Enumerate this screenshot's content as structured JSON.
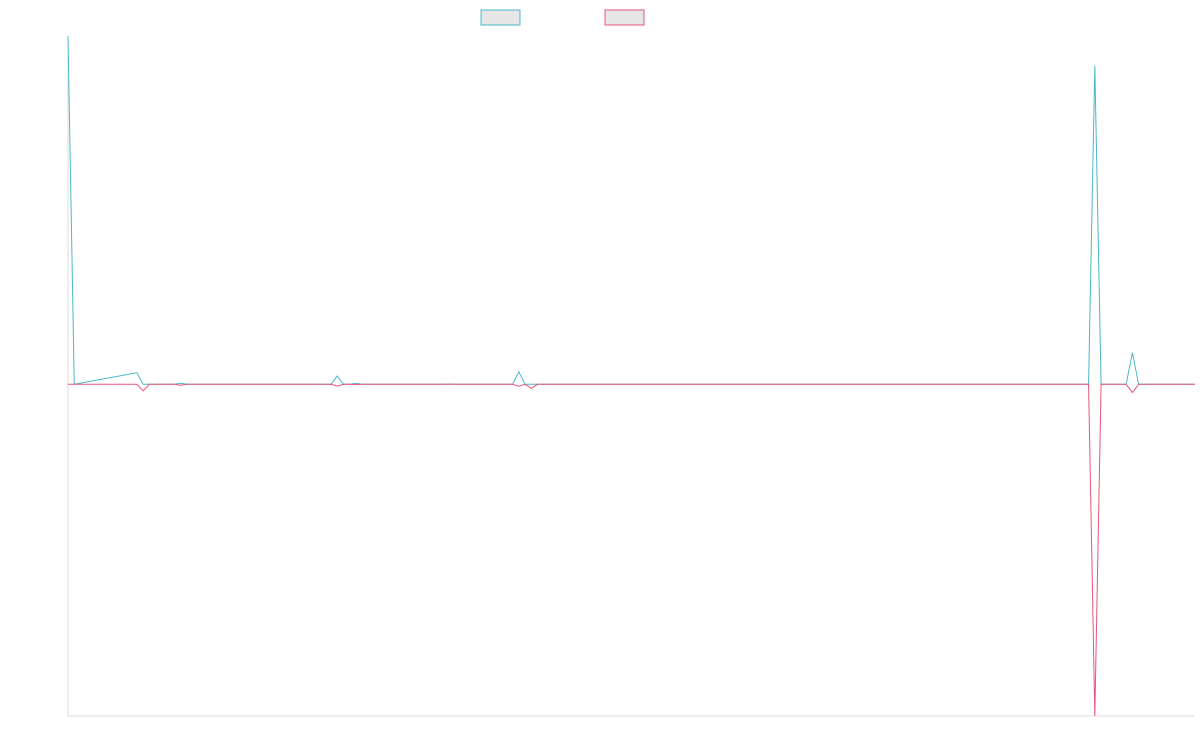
{
  "chart_data": {
    "type": "line",
    "title": "",
    "xlabel": "",
    "ylabel": "",
    "legend": "top-center",
    "grid": false,
    "x": [
      0,
      1,
      2,
      3,
      4,
      5,
      6,
      7,
      8,
      9,
      10,
      11,
      12,
      13,
      14,
      15,
      16,
      17,
      18,
      19,
      20,
      21,
      22,
      23,
      24,
      25,
      26,
      27,
      28,
      29,
      30,
      31,
      32,
      33,
      34,
      35,
      36,
      37,
      38,
      39,
      40,
      41,
      42,
      43,
      44,
      45,
      46,
      47,
      48,
      49,
      50,
      51,
      52,
      53,
      54,
      55,
      56,
      57,
      58,
      59,
      60,
      61,
      62,
      63,
      64,
      65,
      66,
      67,
      68,
      69,
      70,
      71,
      72,
      73,
      74,
      75,
      76,
      77,
      78,
      79,
      80,
      81,
      82,
      83,
      84,
      85,
      86,
      87,
      88,
      89,
      90,
      91,
      92,
      93,
      94,
      95,
      96,
      97,
      98,
      99,
      100,
      101,
      102,
      103,
      104,
      105,
      106,
      107,
      108,
      109,
      110,
      111,
      112,
      113,
      114,
      115,
      116,
      117,
      118,
      119,
      120,
      121,
      122,
      123,
      124,
      125,
      126,
      127,
      128,
      129,
      130,
      131,
      132,
      133,
      134,
      135,
      136,
      137,
      138,
      139,
      140,
      141,
      142,
      143,
      144,
      145,
      146,
      147,
      148,
      149,
      150,
      151,
      152,
      153,
      154,
      155,
      156,
      157,
      158,
      159,
      160,
      161,
      162,
      163,
      164,
      165,
      166,
      167,
      168,
      169,
      170,
      171,
      172,
      173,
      174,
      175,
      176,
      177,
      178,
      179,
      180
    ],
    "ylim": [
      -1,
      1.05
    ],
    "series": [
      {
        "name": "",
        "color": "#4bb8c8",
        "fill": "#e6e6e6",
        "points": [
          [
            0,
            1.05
          ],
          [
            1,
            0
          ],
          [
            11,
            0.035
          ],
          [
            12,
            0
          ],
          [
            17,
            0
          ],
          [
            18,
            0.003
          ],
          [
            19,
            0
          ],
          [
            42,
            0
          ],
          [
            43,
            0.025
          ],
          [
            44,
            0
          ],
          [
            45,
            0
          ],
          [
            46,
            0.003
          ],
          [
            47,
            0
          ],
          [
            60,
            0
          ],
          [
            61,
            0.001
          ],
          [
            62,
            0
          ],
          [
            71,
            0
          ],
          [
            72,
            0.038
          ],
          [
            73,
            0
          ],
          [
            74,
            0
          ],
          [
            163,
            0
          ],
          [
            164,
            0.96
          ],
          [
            165,
            0
          ],
          [
            169,
            0
          ],
          [
            170,
            0.095
          ],
          [
            171,
            0
          ],
          [
            180,
            0
          ]
        ]
      },
      {
        "name": "",
        "color": "#e8557a",
        "fill": "#e6e6e6",
        "points": [
          [
            0,
            0
          ],
          [
            1,
            0
          ],
          [
            11,
            0
          ],
          [
            12,
            -0.02
          ],
          [
            13,
            0
          ],
          [
            17,
            0
          ],
          [
            18,
            -0.003
          ],
          [
            19,
            0
          ],
          [
            42,
            0
          ],
          [
            43,
            -0.005
          ],
          [
            44,
            0
          ],
          [
            45,
            0
          ],
          [
            46,
            -0.001
          ],
          [
            47,
            0
          ],
          [
            71,
            0
          ],
          [
            72,
            -0.006
          ],
          [
            73,
            0
          ],
          [
            74,
            -0.012
          ],
          [
            75,
            0
          ],
          [
            163,
            0
          ],
          [
            164,
            -1
          ],
          [
            165,
            0
          ],
          [
            169,
            0
          ],
          [
            170,
            -0.025
          ],
          [
            171,
            0
          ],
          [
            180,
            0
          ]
        ]
      }
    ]
  }
}
